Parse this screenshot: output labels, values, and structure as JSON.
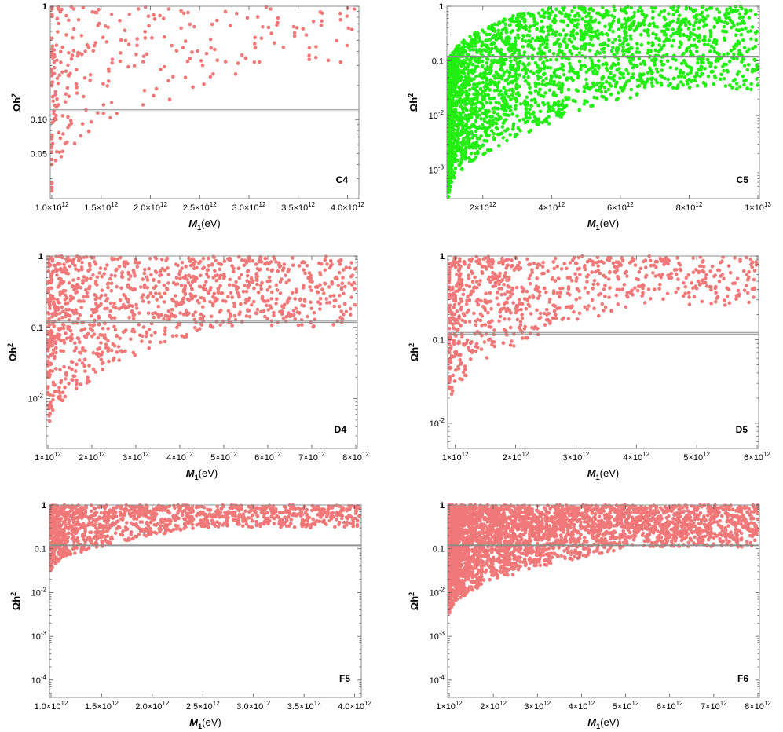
{
  "colors": {
    "pink": "#f07878",
    "green": "#22ee11",
    "band": "#8a8a8a",
    "frame": "#8c8c8c"
  },
  "chart_data": [
    {
      "id": "C4",
      "type": "scatter",
      "label": "C4",
      "color": "#f07878",
      "xlabel_main": "M",
      "xlabel_sub": "1",
      "xlabel_unit": "(eV)",
      "ylabel_main": "Ωh",
      "ylabel_sup": "2",
      "xlim": [
        1000000000000.0,
        4100000000000.0
      ],
      "ylim": [
        0.02,
        1
      ],
      "ylog": true,
      "band": [
        0.117,
        0.122
      ],
      "xticks": [
        {
          "value": 1000000000000.0,
          "mant": "1.0",
          "exp": "12"
        },
        {
          "value": 1500000000000.0,
          "mant": "1.5",
          "exp": "12"
        },
        {
          "value": 2000000000000.0,
          "mant": "2.0",
          "exp": "12"
        },
        {
          "value": 2500000000000.0,
          "mant": "2.5",
          "exp": "12"
        },
        {
          "value": 3000000000000.0,
          "mant": "3.0",
          "exp": "12"
        },
        {
          "value": 3500000000000.0,
          "mant": "3.5",
          "exp": "12"
        },
        {
          "value": 4000000000000.0,
          "mant": "4.0",
          "exp": "12"
        }
      ],
      "yticks": [
        {
          "value": 1,
          "text": "1"
        },
        {
          "value": 0.1,
          "text": "0.10"
        },
        {
          "value": 0.05,
          "text": "0.05"
        }
      ],
      "envelope": {
        "ylow_start": 0.022,
        "ylow_end": 0.3,
        "ylow_span": 0.75,
        "yhigh": 1.0,
        "xdensity": 3.0
      },
      "n_points": 280,
      "seed": 11
    },
    {
      "id": "C5",
      "type": "scatter",
      "label": "C5",
      "color": "#22ee11",
      "xlabel_main": "M",
      "xlabel_sub": "1",
      "xlabel_unit": "(eV)",
      "ylabel_main": "Ωh",
      "ylabel_sup": "2",
      "xlim": [
        1000000000000.0,
        10000000000000.0
      ],
      "ylim": [
        0.0003,
        1
      ],
      "ylog": true,
      "band": [
        0.117,
        0.122
      ],
      "xticks": [
        {
          "value": 2000000000000.0,
          "mant": "2",
          "exp": "12"
        },
        {
          "value": 4000000000000.0,
          "mant": "4",
          "exp": "12"
        },
        {
          "value": 6000000000000.0,
          "mant": "6",
          "exp": "12"
        },
        {
          "value": 8000000000000.0,
          "mant": "8",
          "exp": "12"
        },
        {
          "value": 10000000000000.0,
          "mant": "1",
          "exp": "13"
        }
      ],
      "yticks": [
        {
          "value": 1,
          "text": "1"
        },
        {
          "value": 0.1,
          "text": "0.1"
        },
        {
          "value": 0.01,
          "base": "10",
          "exp": "-2"
        },
        {
          "value": 0.001,
          "base": "10",
          "exp": "-3"
        }
      ],
      "envelope": {
        "ylow_start": 0.0003,
        "ylow_end": 0.03,
        "ylow_span": 0.7,
        "yhigh_start": 0.09,
        "yhigh_end": 1.0,
        "yhigh_span": 0.3,
        "xdensity": 2.3
      },
      "n_points": 2600,
      "seed": 23
    },
    {
      "id": "D4",
      "type": "scatter",
      "label": "D4",
      "color": "#f07878",
      "xlabel_main": "M",
      "xlabel_sub": "1",
      "xlabel_unit": "(eV)",
      "ylabel_main": "Ωh",
      "ylabel_sup": "2",
      "xlim": [
        1000000000000.0,
        8000000000000.0
      ],
      "ylim": [
        0.002,
        1
      ],
      "ylog": true,
      "band": [
        0.117,
        0.122
      ],
      "xticks": [
        {
          "value": 1000000000000.0,
          "mant": "1",
          "exp": "12"
        },
        {
          "value": 2000000000000.0,
          "mant": "2",
          "exp": "12"
        },
        {
          "value": 3000000000000.0,
          "mant": "3",
          "exp": "12"
        },
        {
          "value": 4000000000000.0,
          "mant": "4",
          "exp": "12"
        },
        {
          "value": 5000000000000.0,
          "mant": "5",
          "exp": "12"
        },
        {
          "value": 6000000000000.0,
          "mant": "6",
          "exp": "12"
        },
        {
          "value": 7000000000000.0,
          "mant": "7",
          "exp": "12"
        },
        {
          "value": 8000000000000.0,
          "mant": "8",
          "exp": "12"
        }
      ],
      "yticks": [
        {
          "value": 1,
          "text": "1"
        },
        {
          "value": 0.1,
          "text": "0.1"
        },
        {
          "value": 0.01,
          "base": "10",
          "exp": "-2"
        }
      ],
      "envelope": {
        "ylow_start": 0.003,
        "ylow_end": 0.1,
        "ylow_span": 0.55,
        "yhigh": 1.0,
        "xdensity": 1.8
      },
      "n_points": 1150,
      "seed": 37
    },
    {
      "id": "D5",
      "type": "scatter",
      "label": "D5",
      "color": "#f07878",
      "xlabel_main": "M",
      "xlabel_sub": "1",
      "xlabel_unit": "(eV)",
      "ylabel_main": "Ωh",
      "ylabel_sup": "2",
      "xlim": [
        900000000000.0,
        6000000000000.0
      ],
      "ylim": [
        0.005,
        1
      ],
      "ylog": true,
      "band": [
        0.117,
        0.122
      ],
      "xticks": [
        {
          "value": 1000000000000.0,
          "mant": "1",
          "exp": "12"
        },
        {
          "value": 2000000000000.0,
          "mant": "2",
          "exp": "12"
        },
        {
          "value": 3000000000000.0,
          "mant": "3",
          "exp": "12"
        },
        {
          "value": 4000000000000.0,
          "mant": "4",
          "exp": "12"
        },
        {
          "value": 5000000000000.0,
          "mant": "5",
          "exp": "12"
        },
        {
          "value": 6000000000000.0,
          "mant": "6",
          "exp": "12"
        }
      ],
      "yticks": [
        {
          "value": 1,
          "text": "1"
        },
        {
          "value": 0.1,
          "text": "0.1"
        },
        {
          "value": 0.01,
          "base": "10",
          "exp": "-2"
        }
      ],
      "envelope": {
        "ylow_start": 0.016,
        "ylow_end": 0.25,
        "ylow_span": 0.6,
        "yhigh": 1.0,
        "xdensity": 2.0
      },
      "n_points": 820,
      "seed": 51
    },
    {
      "id": "F5",
      "type": "scatter",
      "label": "F5",
      "color": "#f07878",
      "xlabel_main": "M",
      "xlabel_sub": "1",
      "xlabel_unit": "(eV)",
      "ylabel_main": "Ωh",
      "ylabel_sup": "2",
      "xlim": [
        1000000000000.0,
        4050000000000.0
      ],
      "ylim": [
        4e-05,
        1
      ],
      "ylog": true,
      "band": [
        0.117,
        0.122
      ],
      "xticks": [
        {
          "value": 1000000000000.0,
          "mant": "1.0",
          "exp": "12"
        },
        {
          "value": 1500000000000.0,
          "mant": "1.5",
          "exp": "12"
        },
        {
          "value": 2000000000000.0,
          "mant": "2.0",
          "exp": "12"
        },
        {
          "value": 2500000000000.0,
          "mant": "2.5",
          "exp": "12"
        },
        {
          "value": 3000000000000.0,
          "mant": "3.0",
          "exp": "12"
        },
        {
          "value": 3500000000000.0,
          "mant": "3.5",
          "exp": "12"
        },
        {
          "value": 4000000000000.0,
          "mant": "4.0",
          "exp": "12"
        }
      ],
      "yticks": [
        {
          "value": 1,
          "text": "1"
        },
        {
          "value": 0.1,
          "text": "0.1"
        },
        {
          "value": 0.01,
          "base": "10",
          "exp": "-2"
        },
        {
          "value": 0.001,
          "base": "10",
          "exp": "-3"
        },
        {
          "value": 0.0001,
          "base": "10",
          "exp": "-4"
        }
      ],
      "envelope": {
        "ylow_start": 0.03,
        "ylow_end": 0.3,
        "ylow_span": 0.5,
        "yhigh": 1.0,
        "xdensity": 1.9
      },
      "n_points": 1250,
      "seed": 67
    },
    {
      "id": "F6",
      "type": "scatter",
      "label": "F6",
      "color": "#f07878",
      "xlabel_main": "M",
      "xlabel_sub": "1",
      "xlabel_unit": "(eV)",
      "ylabel_main": "Ωh",
      "ylabel_sup": "2",
      "xlim": [
        1000000000000.0,
        8000000000000.0
      ],
      "ylim": [
        4e-05,
        1
      ],
      "ylog": true,
      "band": [
        0.117,
        0.122
      ],
      "xticks": [
        {
          "value": 1000000000000.0,
          "mant": "1",
          "exp": "12"
        },
        {
          "value": 2000000000000.0,
          "mant": "2",
          "exp": "12"
        },
        {
          "value": 3000000000000.0,
          "mant": "3",
          "exp": "12"
        },
        {
          "value": 4000000000000.0,
          "mant": "4",
          "exp": "12"
        },
        {
          "value": 5000000000000.0,
          "mant": "5",
          "exp": "12"
        },
        {
          "value": 6000000000000.0,
          "mant": "6",
          "exp": "12"
        },
        {
          "value": 7000000000000.0,
          "mant": "7",
          "exp": "12"
        },
        {
          "value": 8000000000000.0,
          "mant": "8",
          "exp": "12"
        }
      ],
      "yticks": [
        {
          "value": 1,
          "text": "1"
        },
        {
          "value": 0.1,
          "text": "0.1"
        },
        {
          "value": 0.01,
          "base": "10",
          "exp": "-2"
        },
        {
          "value": 0.001,
          "base": "10",
          "exp": "-3"
        },
        {
          "value": 0.0001,
          "base": "10",
          "exp": "-4"
        }
      ],
      "envelope": {
        "ylow_start": 0.003,
        "ylow_end": 0.11,
        "ylow_span": 0.6,
        "yhigh": 1.0,
        "xdensity": 2.4
      },
      "n_points": 3400,
      "seed": 89
    }
  ]
}
